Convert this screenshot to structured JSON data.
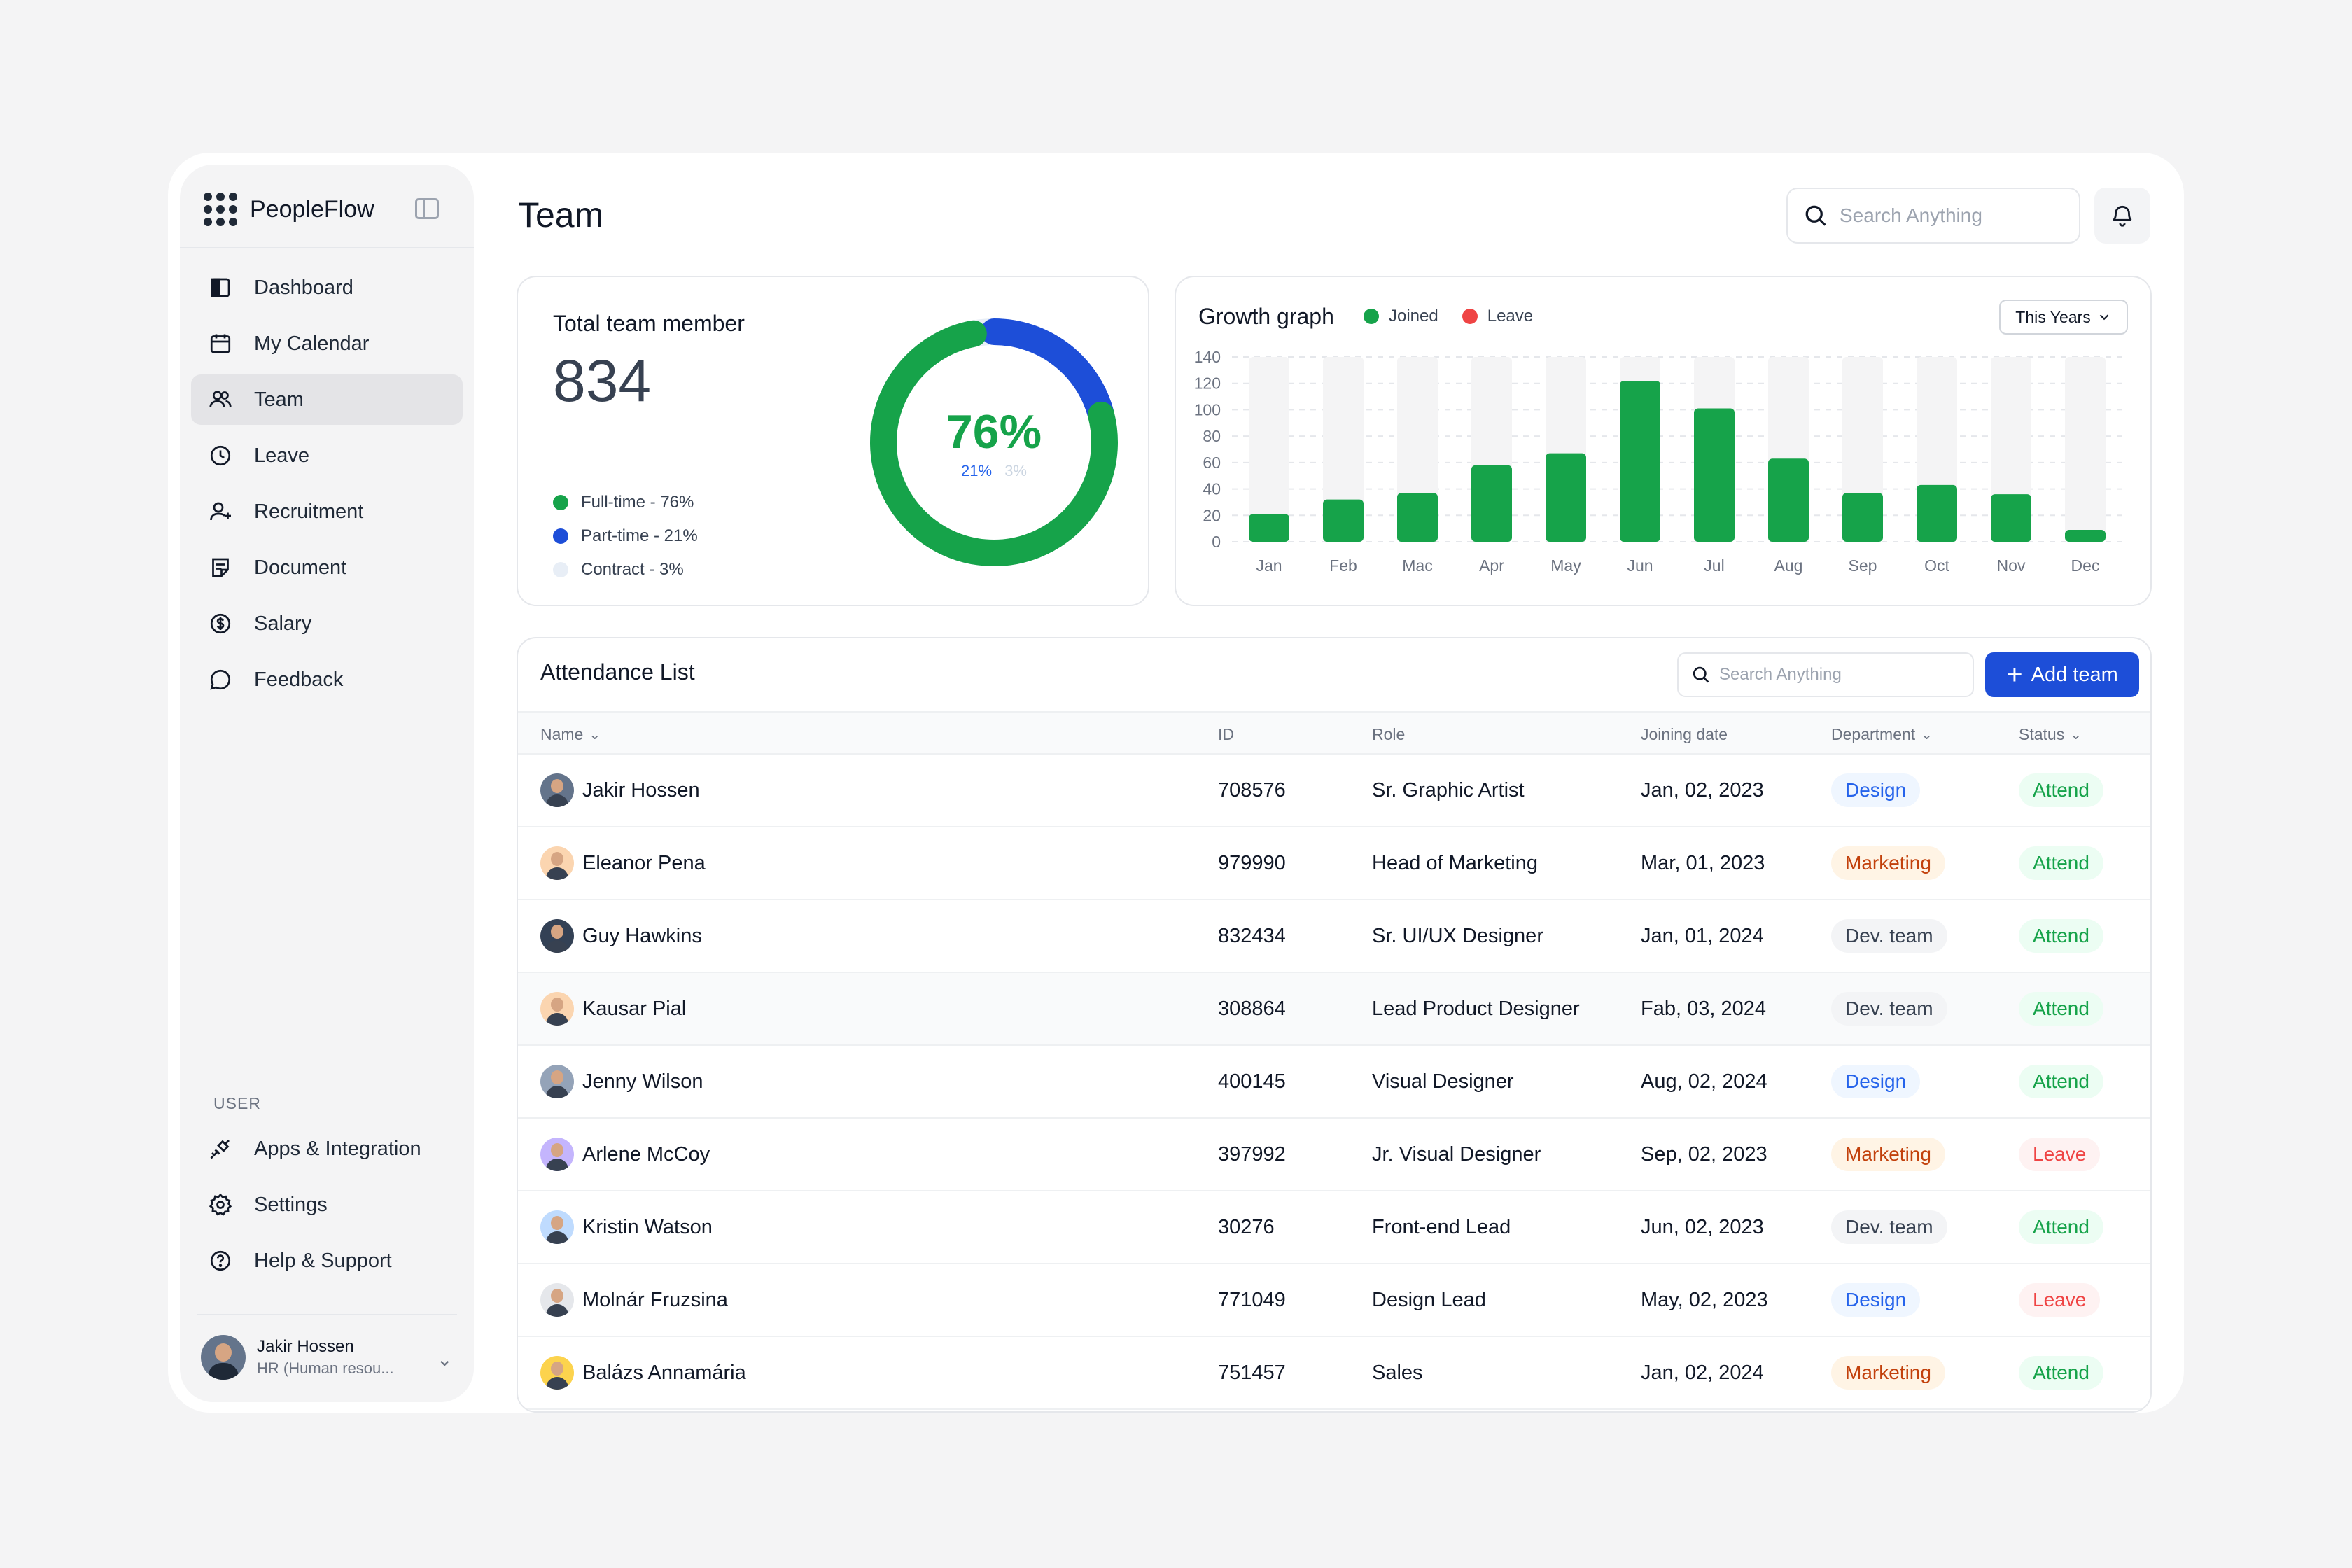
{
  "app": {
    "name": "PeopleFlow"
  },
  "sidebar": {
    "items": [
      {
        "label": "Dashboard",
        "icon": "dashboard-icon"
      },
      {
        "label": "My Calendar",
        "icon": "calendar-icon"
      },
      {
        "label": "Team",
        "icon": "team-icon",
        "active": true
      },
      {
        "label": "Leave",
        "icon": "clock-icon"
      },
      {
        "label": "Recruitment",
        "icon": "user-add-icon"
      },
      {
        "label": "Document",
        "icon": "document-icon"
      },
      {
        "label": "Salary",
        "icon": "dollar-icon"
      },
      {
        "label": "Feedback",
        "icon": "chat-icon"
      }
    ],
    "section_label": "USER",
    "user_items": [
      {
        "label": "Apps & Integration",
        "icon": "plug-icon"
      },
      {
        "label": "Settings",
        "icon": "gear-icon"
      },
      {
        "label": "Help & Support",
        "icon": "help-icon"
      }
    ],
    "user": {
      "name": "Jakir Hossen",
      "role": "HR (Human resou..."
    }
  },
  "header": {
    "title": "Team",
    "search_placeholder": "Search Anything"
  },
  "total": {
    "title": "Total team member",
    "value": "834",
    "percent_main": "76%",
    "percent_part": "21%",
    "percent_contract": "3%",
    "legend": [
      {
        "label": "Full-time - 76%",
        "color": "#16a34a",
        "value": 76
      },
      {
        "label": "Part-time - 21%",
        "color": "#1d4ed8",
        "value": 21
      },
      {
        "label": "Contract -  3%",
        "color": "#e8eef6",
        "value": 3
      }
    ]
  },
  "growth": {
    "title": "Growth graph",
    "legend_joined": "Joined",
    "legend_leave": "Leave",
    "period": "This Years",
    "colors": {
      "joined": "#16a34a",
      "leave": "#ef4444",
      "track": "#f4f4f5"
    }
  },
  "chart_data": {
    "type": "bar",
    "title": "Growth graph",
    "categories": [
      "Jan",
      "Feb",
      "Mac",
      "Apr",
      "May",
      "Jun",
      "Jul",
      "Aug",
      "Sep",
      "Oct",
      "Nov",
      "Dec"
    ],
    "series": [
      {
        "name": "Joined",
        "values": [
          21,
          32,
          37,
          58,
          67,
          122,
          101,
          63,
          37,
          43,
          36,
          9
        ]
      }
    ],
    "ylim": [
      0,
      140
    ],
    "yticks": [
      0,
      20,
      40,
      60,
      80,
      100,
      120,
      140
    ],
    "grid": true,
    "legend": "top-left"
  },
  "attendance": {
    "title": "Attendance List",
    "search_placeholder": "Search Anything",
    "add_label": "Add team",
    "columns": {
      "name": "Name",
      "id": "ID",
      "role": "Role",
      "date": "Joining date",
      "department": "Department",
      "status": "Status"
    },
    "rows": [
      {
        "name": "Jakir Hossen",
        "id": "708576",
        "role": "Sr. Graphic Artist",
        "date": "Jan, 02, 2023",
        "department": "Design",
        "status": "Attend"
      },
      {
        "name": "Eleanor Pena",
        "id": "979990",
        "role": "Head of Marketing",
        "date": "Mar, 01, 2023",
        "department": "Marketing",
        "status": "Attend"
      },
      {
        "name": "Guy Hawkins",
        "id": "832434",
        "role": "Sr. UI/UX Designer",
        "date": "Jan, 01, 2024",
        "department": "Dev. team",
        "status": "Attend"
      },
      {
        "name": "Kausar Pial",
        "id": "308864",
        "role": "Lead Product Designer",
        "date": "Fab, 03, 2024",
        "department": "Dev. team",
        "status": "Attend"
      },
      {
        "name": "Jenny Wilson",
        "id": "400145",
        "role": "Visual Designer",
        "date": "Aug, 02, 2024",
        "department": "Design",
        "status": "Attend"
      },
      {
        "name": "Arlene McCoy",
        "id": "397992",
        "role": "Jr. Visual Designer",
        "date": "Sep, 02, 2023",
        "department": "Marketing",
        "status": "Leave"
      },
      {
        "name": "Kristin Watson",
        "id": "30276",
        "role": "Front-end Lead",
        "date": "Jun, 02, 2023",
        "department": "Dev. team",
        "status": "Attend"
      },
      {
        "name": "Molnár Fruzsina",
        "id": "771049",
        "role": "Design Lead",
        "date": "May, 02, 2023",
        "department": "Design",
        "status": "Leave"
      },
      {
        "name": "Balázs Annamária",
        "id": "751457",
        "role": "Sales",
        "date": "Jan, 02, 2024",
        "department": "Marketing",
        "status": "Attend"
      }
    ]
  }
}
